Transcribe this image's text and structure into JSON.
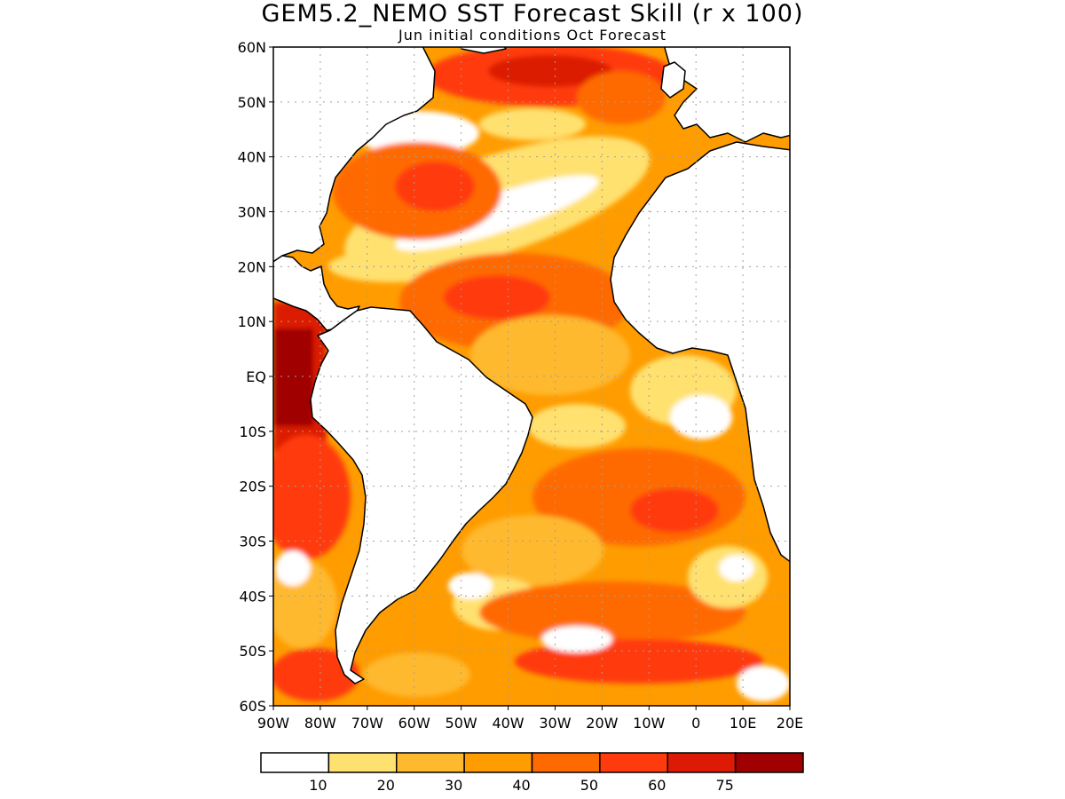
{
  "title": "GEM5.2_NEMO SST Forecast Skill (r x 100)",
  "subtitle": "Jun initial conditions  Oct Forecast",
  "map": {
    "lon_range": [
      -90,
      20
    ],
    "lat_range": [
      -60,
      60
    ],
    "lat_ticks": [
      {
        "lat": 60,
        "label": "60N"
      },
      {
        "lat": 50,
        "label": "50N"
      },
      {
        "lat": 40,
        "label": "40N"
      },
      {
        "lat": 30,
        "label": "30N"
      },
      {
        "lat": 20,
        "label": "20N"
      },
      {
        "lat": 10,
        "label": "10N"
      },
      {
        "lat": 0,
        "label": "EQ"
      },
      {
        "lat": -10,
        "label": "10S"
      },
      {
        "lat": -20,
        "label": "20S"
      },
      {
        "lat": -30,
        "label": "30S"
      },
      {
        "lat": -40,
        "label": "40S"
      },
      {
        "lat": -50,
        "label": "50S"
      },
      {
        "lat": -60,
        "label": "60S"
      }
    ],
    "lon_ticks": [
      {
        "lon": -90,
        "label": "90W"
      },
      {
        "lon": -80,
        "label": "80W"
      },
      {
        "lon": -70,
        "label": "70W"
      },
      {
        "lon": -60,
        "label": "60W"
      },
      {
        "lon": -50,
        "label": "50W"
      },
      {
        "lon": -40,
        "label": "40W"
      },
      {
        "lon": -30,
        "label": "30W"
      },
      {
        "lon": -20,
        "label": "20W"
      },
      {
        "lon": -10,
        "label": "10W"
      },
      {
        "lon": 0,
        "label": "0"
      },
      {
        "lon": 10,
        "label": "10E"
      },
      {
        "lon": 20,
        "label": "20E"
      }
    ],
    "grid": true,
    "colors": {
      "land": "#ffffff",
      "coast": "#000000",
      "grid": "#a0a0a0"
    }
  },
  "colorbar": {
    "colors": [
      "#ffffff",
      "#ffe16f",
      "#ffb92e",
      "#ff9c00",
      "#ff6a00",
      "#ff3a0c",
      "#dc1a05",
      "#a00000"
    ],
    "labels": [
      "10",
      "20",
      "30",
      "40",
      "50",
      "60",
      "75"
    ]
  }
}
